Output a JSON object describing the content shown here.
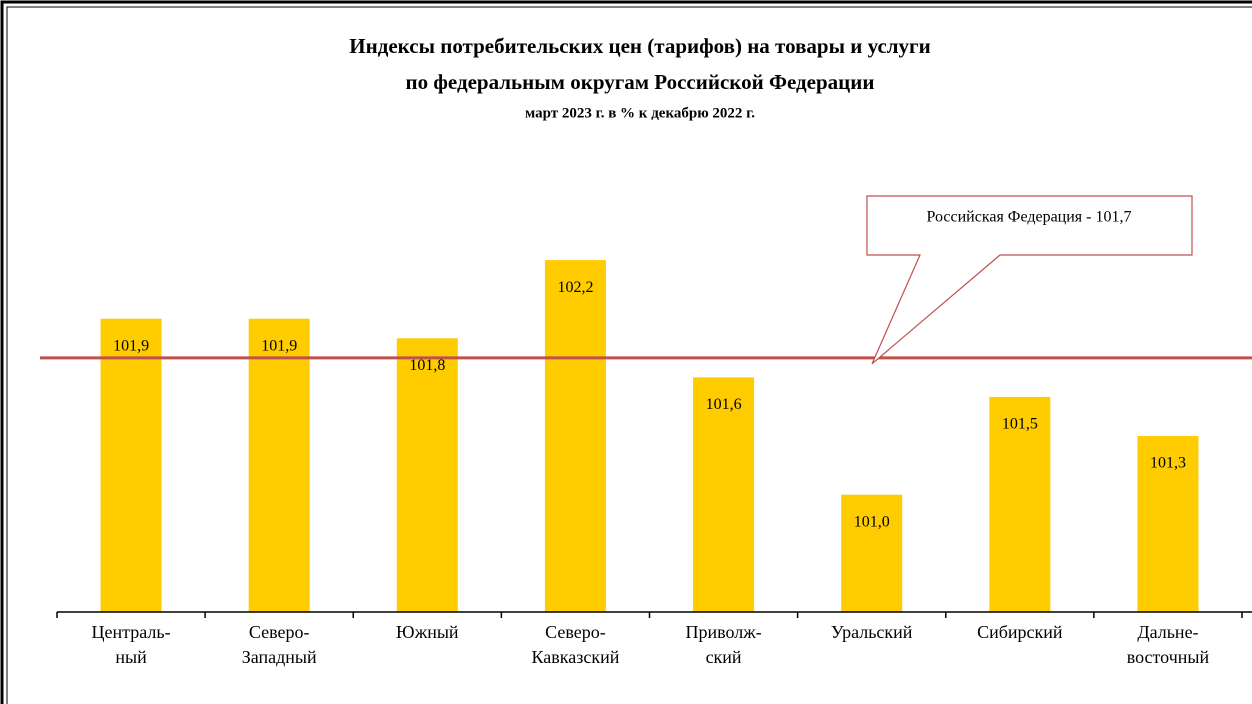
{
  "chart_data": {
    "type": "bar",
    "title": [
      "Индексы  потребительских  цен (тарифов)  на товары  и услуги",
      "по федеральным  округам  Российской  Федерации"
    ],
    "subtitle": "март 2023 г.  в % к декабрю 2022 г.",
    "categories": [
      [
        "Централь-",
        "ный"
      ],
      [
        "Северо-",
        "Западный"
      ],
      [
        "Южный"
      ],
      [
        "Северо-",
        "Кавказский"
      ],
      [
        "Приволж-",
        "ский"
      ],
      [
        "Уральский"
      ],
      [
        "Сибирский"
      ],
      [
        "Дальне-",
        "восточный"
      ]
    ],
    "values": [
      101.9,
      101.9,
      101.8,
      102.2,
      101.6,
      101.0,
      101.5,
      101.3
    ],
    "value_labels": [
      "101,9",
      "101,9",
      "101,8",
      "102,2",
      "101,6",
      "101,0",
      "101,5",
      "101,3"
    ],
    "color": "#ffcc00",
    "ylim": [
      100.4,
      102.4
    ],
    "reference": {
      "value": 101.7,
      "color": "#c0504d",
      "label": "Российская Федерация - 101,7"
    }
  }
}
